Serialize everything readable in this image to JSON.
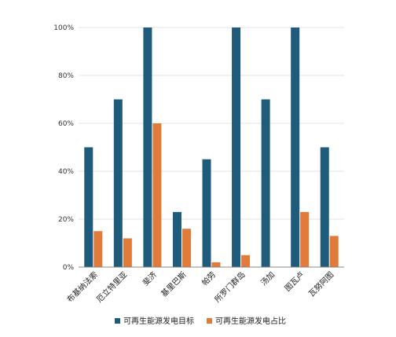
{
  "chart_data": {
    "type": "bar",
    "categories": [
      "布基纳法索",
      "厄立特里亚",
      "斐济",
      "基里巴斯",
      "帕劳",
      "所罗门群岛",
      "汤加",
      "图瓦卢",
      "瓦努阿图"
    ],
    "series": [
      {
        "name": "可再生能源发电目标",
        "values": [
          50,
          70,
          100,
          23,
          45,
          100,
          70,
          100,
          50
        ],
        "color": "#1f5b7a"
      },
      {
        "name": "可再生能源发电占比",
        "values": [
          15,
          12,
          60,
          16,
          2,
          5,
          0,
          23,
          13
        ],
        "color": "#e07b39"
      }
    ],
    "yticks": [
      "0%",
      "20%",
      "40%",
      "60%",
      "80%",
      "100%"
    ],
    "ylim": [
      0,
      100
    ],
    "grid": true,
    "legend_position": "bottom"
  }
}
